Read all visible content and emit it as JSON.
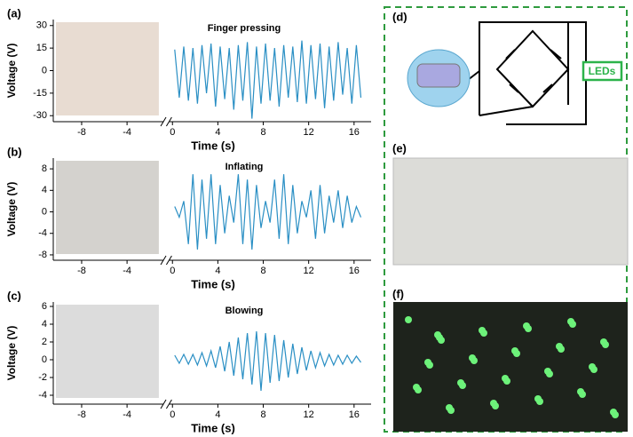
{
  "chart_data": [
    {
      "type": "line",
      "panel": "(a)",
      "annotation": "Finger pressing",
      "xlabel": "Time (s)",
      "ylabel": "Voltage (V)",
      "x": [
        0.2,
        0.6,
        1.0,
        1.4,
        1.8,
        2.2,
        2.6,
        3.0,
        3.4,
        3.8,
        4.2,
        4.6,
        5.0,
        5.4,
        5.8,
        6.2,
        6.6,
        7.0,
        7.4,
        7.8,
        8.2,
        8.6,
        9.0,
        9.4,
        9.8,
        10.2,
        10.6,
        11.0,
        11.4,
        11.8,
        12.2,
        12.6,
        13.0,
        13.4,
        13.8,
        14.2,
        14.6,
        15.0,
        15.4,
        15.8,
        16.2,
        16.6
      ],
      "series": [
        {
          "color": "#2a8fc4",
          "values": [
            14,
            -18,
            16,
            -20,
            15,
            -22,
            17,
            -15,
            18,
            -24,
            16,
            -19,
            15,
            -26,
            17,
            -20,
            19,
            -32,
            16,
            -22,
            18,
            -20,
            15,
            -24,
            17,
            -18,
            16,
            -21,
            20,
            -22,
            17,
            -19,
            18,
            -25,
            16,
            -20,
            19,
            -16,
            15,
            -22,
            17,
            -18
          ]
        }
      ],
      "xlim": [
        -10.5,
        17.5
      ],
      "xticks": [
        -8,
        -4,
        0,
        4,
        8,
        12,
        16
      ],
      "ylim": [
        -34,
        34
      ],
      "yticks": [
        -30,
        -15,
        0,
        15,
        30
      ]
    },
    {
      "type": "line",
      "panel": "(b)",
      "annotation": "Inflating",
      "xlabel": "Time (s)",
      "ylabel": "Voltage (V)",
      "x": [
        0.2,
        0.6,
        1.0,
        1.4,
        1.8,
        2.2,
        2.6,
        3.0,
        3.4,
        3.8,
        4.2,
        4.6,
        5.0,
        5.4,
        5.8,
        6.2,
        6.6,
        7.0,
        7.4,
        7.8,
        8.2,
        8.6,
        9.0,
        9.4,
        9.8,
        10.2,
        10.6,
        11.0,
        11.4,
        11.8,
        12.2,
        12.6,
        13.0,
        13.4,
        13.8,
        14.2,
        14.6,
        15.0,
        15.4,
        15.8,
        16.2,
        16.6
      ],
      "series": [
        {
          "color": "#2a8fc4",
          "values": [
            1,
            -1,
            2,
            -6,
            7,
            -7,
            6,
            -5,
            7,
            -6,
            5,
            -4,
            3,
            -2,
            7,
            -6,
            6,
            -7,
            5,
            -3,
            2,
            -2,
            6,
            -5,
            7,
            -6,
            5,
            -4,
            2,
            -1,
            4,
            -5,
            5,
            -4,
            3,
            -2,
            4,
            -3,
            3,
            -2,
            1,
            -1
          ]
        }
      ],
      "xlim": [
        -10.5,
        17.5
      ],
      "xticks": [
        -8,
        -4,
        0,
        4,
        8,
        12,
        16
      ],
      "ylim": [
        -9,
        10
      ],
      "yticks": [
        -8,
        -4,
        0,
        4,
        8
      ]
    },
    {
      "type": "line",
      "panel": "(c)",
      "annotation": "Blowing",
      "xlabel": "Time (s)",
      "ylabel": "Voltage (V)",
      "x": [
        0.2,
        0.6,
        1.0,
        1.4,
        1.8,
        2.2,
        2.6,
        3.0,
        3.4,
        3.8,
        4.2,
        4.6,
        5.0,
        5.4,
        5.8,
        6.2,
        6.6,
        7.0,
        7.4,
        7.8,
        8.2,
        8.6,
        9.0,
        9.4,
        9.8,
        10.2,
        10.6,
        11.0,
        11.4,
        11.8,
        12.2,
        12.6,
        13.0,
        13.4,
        13.8,
        14.2,
        14.6,
        15.0,
        15.4,
        15.8,
        16.2,
        16.6
      ],
      "series": [
        {
          "color": "#2a8fc4",
          "values": [
            0.5,
            -0.4,
            0.6,
            -0.5,
            0.6,
            -0.6,
            0.8,
            -0.7,
            1,
            -0.9,
            1.5,
            -1.3,
            2,
            -1.8,
            2.5,
            -2.2,
            3,
            -2.8,
            3.2,
            -3.5,
            3,
            -2.6,
            2.8,
            -2.4,
            2.2,
            -2,
            1.8,
            -1.6,
            1.4,
            -1.2,
            1,
            -0.9,
            0.8,
            -0.7,
            0.6,
            -0.6,
            0.5,
            -0.5,
            0.5,
            -0.4,
            0.4,
            -0.3
          ]
        }
      ],
      "xlim": [
        -10.5,
        17.5
      ],
      "xticks": [
        -8,
        -4,
        0,
        4,
        8,
        12,
        16
      ],
      "ylim": [
        -5,
        6.5
      ],
      "yticks": [
        -4,
        -2,
        0,
        2,
        4,
        6
      ]
    }
  ],
  "diagram": {
    "panel": "(d)",
    "load_label": "LEDs"
  },
  "photos": [
    {
      "panel": "(e)"
    },
    {
      "panel": "(f)"
    }
  ]
}
